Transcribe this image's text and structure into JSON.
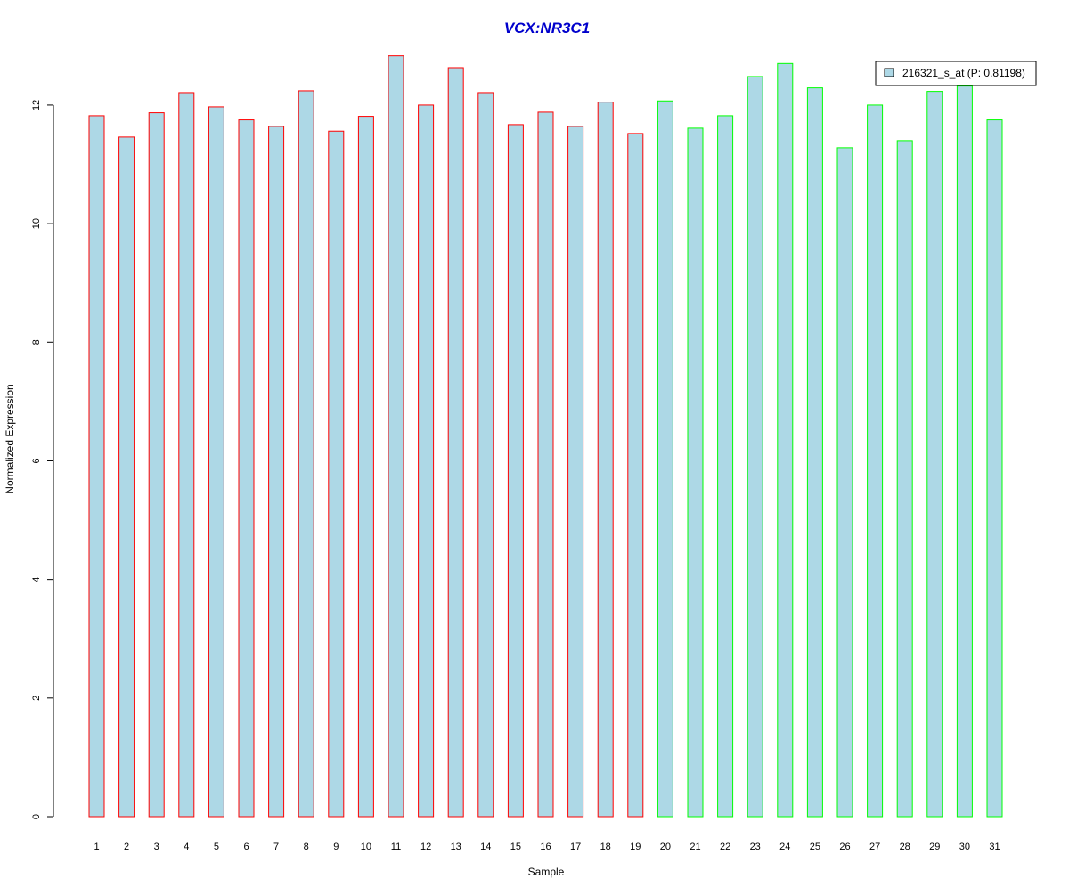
{
  "chart_data": {
    "type": "bar",
    "title": "VCX:NR3C1",
    "title_color": "#0000CC",
    "xlabel": "Sample",
    "ylabel": "Normalized Expression",
    "ylim": [
      0,
      12.9
    ],
    "yticks": [
      0,
      2,
      4,
      6,
      8,
      10,
      12
    ],
    "categories": [
      "1",
      "2",
      "3",
      "4",
      "5",
      "6",
      "7",
      "8",
      "9",
      "10",
      "11",
      "12",
      "13",
      "14",
      "15",
      "16",
      "17",
      "18",
      "19",
      "20",
      "21",
      "22",
      "23",
      "24",
      "25",
      "26",
      "27",
      "28",
      "29",
      "30",
      "31"
    ],
    "values": [
      11.82,
      11.46,
      11.87,
      12.21,
      11.97,
      11.75,
      11.64,
      12.24,
      11.56,
      11.81,
      12.83,
      12.0,
      12.63,
      12.21,
      11.67,
      11.88,
      11.64,
      12.05,
      11.52,
      12.07,
      11.61,
      11.82,
      12.48,
      12.7,
      12.29,
      11.28,
      12.0,
      11.4,
      12.23,
      12.32,
      11.75
    ],
    "groups": [
      1,
      1,
      1,
      1,
      1,
      1,
      1,
      1,
      1,
      1,
      1,
      1,
      1,
      1,
      1,
      1,
      1,
      1,
      1,
      2,
      2,
      2,
      2,
      2,
      2,
      2,
      2,
      2,
      2,
      2,
      2
    ],
    "group_border_colors": {
      "1": "#FF0000",
      "2": "#00FF00"
    },
    "bar_fill": "#ADD8E6",
    "legend": {
      "label": "216321_s_at (P: 0.81198)",
      "position": "top-right",
      "swatch_color": "#ADD8E6"
    },
    "grid": false
  }
}
